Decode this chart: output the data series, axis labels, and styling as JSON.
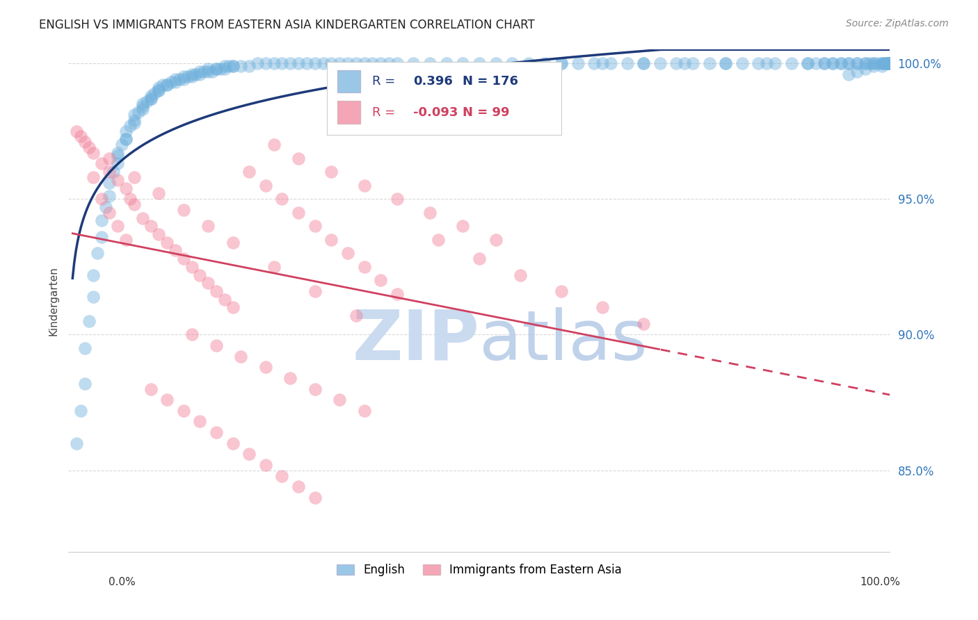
{
  "title": "ENGLISH VS IMMIGRANTS FROM EASTERN ASIA KINDERGARTEN CORRELATION CHART",
  "source": "Source: ZipAtlas.com",
  "ylabel": "Kindergarten",
  "right_ytick_labels": [
    "100.0%",
    "95.0%",
    "90.0%",
    "85.0%"
  ],
  "right_ytick_values": [
    1.0,
    0.95,
    0.9,
    0.85
  ],
  "legend_english": "English",
  "legend_immigrants": "Immigrants from Eastern Asia",
  "legend_r_english": "R =",
  "legend_r_english_val": "0.396",
  "legend_n_english": "N = 176",
  "legend_r_immigrants": "R =",
  "legend_r_immigrants_val": "-0.093",
  "legend_n_immigrants": "N = 99",
  "english_color": "#6fb0dc",
  "immigrant_color": "#f08098",
  "trend_english_color": "#1e3a7a",
  "trend_immigrant_color": "#d04060",
  "watermark_zip_color": "#c5d8ef",
  "watermark_atlas_color": "#b8cde8",
  "background_color": "#ffffff",
  "grid_color": "#d8d8d8",
  "xlim": [
    0.0,
    1.0
  ],
  "ylim": [
    0.82,
    1.005
  ],
  "english_x": [
    0.01,
    0.015,
    0.02,
    0.02,
    0.025,
    0.03,
    0.03,
    0.035,
    0.04,
    0.04,
    0.045,
    0.05,
    0.05,
    0.055,
    0.06,
    0.06,
    0.065,
    0.07,
    0.07,
    0.075,
    0.08,
    0.08,
    0.085,
    0.09,
    0.09,
    0.095,
    0.1,
    0.1,
    0.105,
    0.11,
    0.11,
    0.115,
    0.12,
    0.125,
    0.13,
    0.135,
    0.14,
    0.145,
    0.15,
    0.155,
    0.16,
    0.165,
    0.17,
    0.175,
    0.18,
    0.185,
    0.19,
    0.195,
    0.2,
    0.21,
    0.22,
    0.23,
    0.24,
    0.25,
    0.26,
    0.27,
    0.28,
    0.29,
    0.3,
    0.31,
    0.32,
    0.33,
    0.34,
    0.35,
    0.36,
    0.37,
    0.38,
    0.39,
    0.4,
    0.42,
    0.44,
    0.46,
    0.48,
    0.5,
    0.52,
    0.54,
    0.56,
    0.58,
    0.6,
    0.62,
    0.64,
    0.66,
    0.68,
    0.7,
    0.72,
    0.74,
    0.76,
    0.78,
    0.8,
    0.82,
    0.84,
    0.86,
    0.88,
    0.9,
    0.92,
    0.93,
    0.94,
    0.95,
    0.96,
    0.97,
    0.975,
    0.98,
    0.985,
    0.99,
    0.992,
    0.994,
    0.995,
    0.996,
    0.997,
    0.998,
    0.999,
    1.0,
    0.06,
    0.07,
    0.08,
    0.09,
    0.1,
    0.11,
    0.12,
    0.13,
    0.14,
    0.15,
    0.16,
    0.17,
    0.18,
    0.19,
    0.2,
    0.6,
    0.65,
    0.7,
    0.75,
    0.8,
    0.85,
    0.9,
    0.95,
    1.0,
    0.96,
    0.97,
    0.98,
    0.99,
    1.0,
    0.94,
    0.93,
    0.92,
    0.91,
    0.97,
    0.98,
    0.99,
    1.0,
    0.96,
    0.95
  ],
  "english_y": [
    0.86,
    0.872,
    0.882,
    0.895,
    0.905,
    0.914,
    0.922,
    0.93,
    0.936,
    0.942,
    0.947,
    0.951,
    0.956,
    0.96,
    0.963,
    0.967,
    0.97,
    0.972,
    0.975,
    0.977,
    0.979,
    0.981,
    0.982,
    0.984,
    0.985,
    0.986,
    0.987,
    0.988,
    0.989,
    0.99,
    0.991,
    0.992,
    0.992,
    0.993,
    0.993,
    0.994,
    0.994,
    0.995,
    0.995,
    0.996,
    0.996,
    0.997,
    0.997,
    0.997,
    0.998,
    0.998,
    0.998,
    0.999,
    0.999,
    0.999,
    0.999,
    1.0,
    1.0,
    1.0,
    1.0,
    1.0,
    1.0,
    1.0,
    1.0,
    1.0,
    1.0,
    1.0,
    1.0,
    1.0,
    1.0,
    1.0,
    1.0,
    1.0,
    1.0,
    1.0,
    1.0,
    1.0,
    1.0,
    1.0,
    1.0,
    1.0,
    1.0,
    1.0,
    1.0,
    1.0,
    1.0,
    1.0,
    1.0,
    1.0,
    1.0,
    1.0,
    1.0,
    1.0,
    1.0,
    1.0,
    1.0,
    1.0,
    1.0,
    1.0,
    1.0,
    1.0,
    1.0,
    1.0,
    1.0,
    1.0,
    1.0,
    1.0,
    1.0,
    1.0,
    1.0,
    1.0,
    1.0,
    1.0,
    1.0,
    1.0,
    1.0,
    1.0,
    0.966,
    0.972,
    0.978,
    0.983,
    0.987,
    0.99,
    0.992,
    0.994,
    0.995,
    0.996,
    0.997,
    0.998,
    0.998,
    0.999,
    0.999,
    1.0,
    1.0,
    1.0,
    1.0,
    1.0,
    1.0,
    1.0,
    1.0,
    1.0,
    1.0,
    1.0,
    1.0,
    1.0,
    1.0,
    1.0,
    1.0,
    1.0,
    1.0,
    0.998,
    0.999,
    0.999,
    1.0,
    0.997,
    0.996
  ],
  "immigrant_x": [
    0.01,
    0.015,
    0.02,
    0.025,
    0.03,
    0.03,
    0.04,
    0.04,
    0.05,
    0.05,
    0.06,
    0.06,
    0.07,
    0.07,
    0.075,
    0.08,
    0.09,
    0.1,
    0.11,
    0.12,
    0.13,
    0.14,
    0.15,
    0.16,
    0.17,
    0.18,
    0.19,
    0.2,
    0.22,
    0.24,
    0.26,
    0.28,
    0.3,
    0.32,
    0.34,
    0.36,
    0.38,
    0.4,
    0.1,
    0.12,
    0.14,
    0.16,
    0.18,
    0.2,
    0.22,
    0.24,
    0.26,
    0.28,
    0.3,
    0.15,
    0.18,
    0.21,
    0.24,
    0.27,
    0.3,
    0.33,
    0.36,
    0.45,
    0.5,
    0.55,
    0.6,
    0.65,
    0.7,
    0.25,
    0.28,
    0.32,
    0.36,
    0.4,
    0.44,
    0.48,
    0.52,
    0.05,
    0.08,
    0.11,
    0.14,
    0.17,
    0.2,
    0.25,
    0.3,
    0.35
  ],
  "immigrant_y": [
    0.975,
    0.973,
    0.971,
    0.969,
    0.967,
    0.958,
    0.963,
    0.95,
    0.96,
    0.945,
    0.957,
    0.94,
    0.954,
    0.935,
    0.95,
    0.948,
    0.943,
    0.94,
    0.937,
    0.934,
    0.931,
    0.928,
    0.925,
    0.922,
    0.919,
    0.916,
    0.913,
    0.91,
    0.96,
    0.955,
    0.95,
    0.945,
    0.94,
    0.935,
    0.93,
    0.925,
    0.92,
    0.915,
    0.88,
    0.876,
    0.872,
    0.868,
    0.864,
    0.86,
    0.856,
    0.852,
    0.848,
    0.844,
    0.84,
    0.9,
    0.896,
    0.892,
    0.888,
    0.884,
    0.88,
    0.876,
    0.872,
    0.935,
    0.928,
    0.922,
    0.916,
    0.91,
    0.904,
    0.97,
    0.965,
    0.96,
    0.955,
    0.95,
    0.945,
    0.94,
    0.935,
    0.965,
    0.958,
    0.952,
    0.946,
    0.94,
    0.934,
    0.925,
    0.916,
    0.907
  ]
}
